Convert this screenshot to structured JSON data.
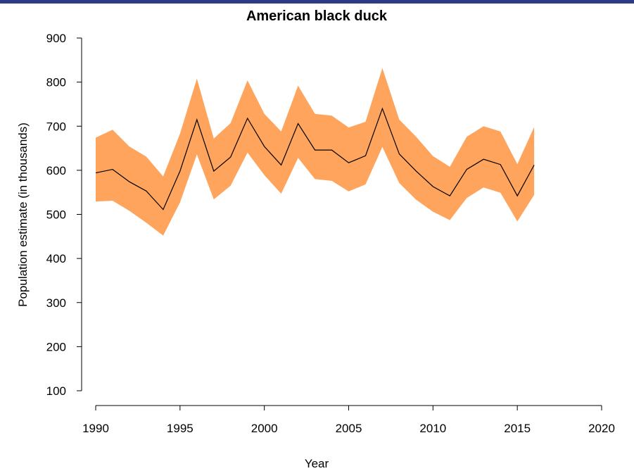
{
  "colors": {
    "top_bar": "#2e3a87",
    "band": "#ffa45c",
    "line": "#000000"
  },
  "chart_data": {
    "type": "area",
    "title": "American black duck",
    "xlabel": "Year",
    "ylabel": "Population estimate (in thousands)",
    "xlim": [
      1990,
      2020
    ],
    "ylim": [
      100,
      900
    ],
    "xticks": [
      1990,
      1995,
      2000,
      2005,
      2010,
      2015,
      2020
    ],
    "yticks": [
      100,
      200,
      300,
      400,
      500,
      600,
      700,
      800,
      900
    ],
    "x": [
      1990,
      1991,
      1992,
      1993,
      1994,
      1995,
      1996,
      1997,
      1998,
      1999,
      2000,
      2001,
      2002,
      2003,
      2004,
      2005,
      2006,
      2007,
      2008,
      2009,
      2010,
      2011,
      2012,
      2013,
      2014,
      2015,
      2016
    ],
    "series": [
      {
        "values": [
          594,
          602,
          574,
          553,
          511,
          598,
          715,
          598,
          630,
          718,
          654,
          612,
          706,
          646,
          646,
          617,
          633,
          740,
          637,
          598,
          563,
          542,
          602,
          625,
          613,
          542,
          612
        ],
        "lower": [
          529,
          531,
          508,
          481,
          452,
          527,
          636,
          534,
          565,
          640,
          589,
          547,
          628,
          580,
          576,
          552,
          568,
          653,
          571,
          533,
          506,
          487,
          537,
          561,
          549,
          484,
          544
        ],
        "upper": [
          674,
          692,
          654,
          631,
          586,
          683,
          808,
          672,
          707,
          804,
          728,
          688,
          792,
          728,
          724,
          697,
          710,
          832,
          715,
          676,
          632,
          608,
          676,
          700,
          688,
          614,
          698
        ]
      }
    ]
  }
}
